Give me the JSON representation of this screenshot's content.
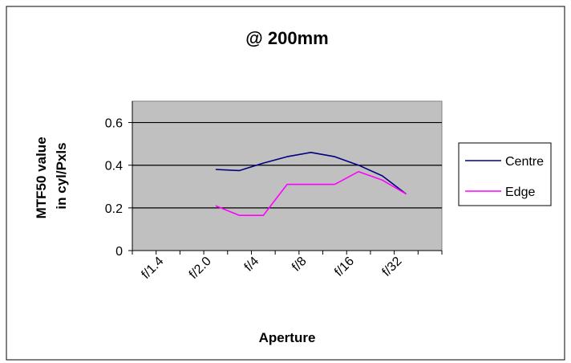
{
  "chart_data": {
    "type": "line",
    "title": "@ 200mm",
    "xlabel": "Aperture",
    "ylabel": [
      "MTF50 value",
      "in cyl/Pxls"
    ],
    "ylim": [
      0,
      0.7
    ],
    "yticks": [
      "0",
      "0.2",
      "0.4",
      "0.6"
    ],
    "ytick_values": [
      0,
      0.2,
      0.4,
      0.6
    ],
    "categories": [
      "f/1.4",
      "f/2.0",
      "f/4",
      "f/8",
      "f/16",
      "f/32"
    ],
    "x_index_range": [
      0,
      13
    ],
    "grid": true,
    "legend_position": "right",
    "series": [
      {
        "name": "Centre",
        "color": "#000080",
        "x": [
          3.5,
          4.5,
          5.5,
          6.5,
          7.5,
          8.5,
          9.5,
          10.5,
          11.5
        ],
        "values": [
          0.38,
          0.375,
          0.41,
          0.44,
          0.46,
          0.44,
          0.4,
          0.35,
          0.265
        ]
      },
      {
        "name": "Edge",
        "color": "#ff00ff",
        "x": [
          3.5,
          4.5,
          5.5,
          6.5,
          7.5,
          8.5,
          9.5,
          10.5,
          11.5
        ],
        "values": [
          0.21,
          0.165,
          0.165,
          0.31,
          0.31,
          0.31,
          0.37,
          0.33,
          0.265
        ]
      }
    ]
  }
}
